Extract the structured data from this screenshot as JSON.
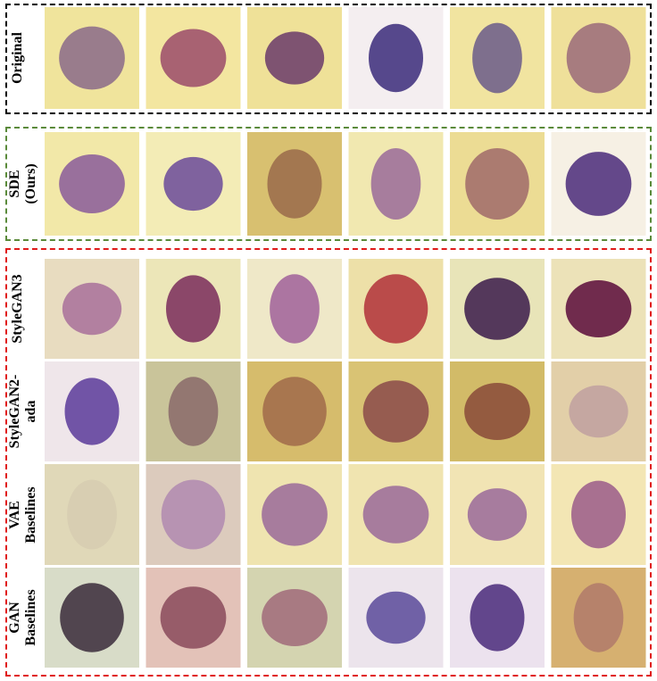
{
  "rows": [
    {
      "label": "Original"
    },
    {
      "label": "SDE (Ours)"
    },
    {
      "label": "StyleGAN3"
    },
    {
      "label": "StyleGAN2-ada"
    },
    {
      "label": "VAE Baselines"
    },
    {
      "label": "GAN Baselines"
    }
  ]
}
